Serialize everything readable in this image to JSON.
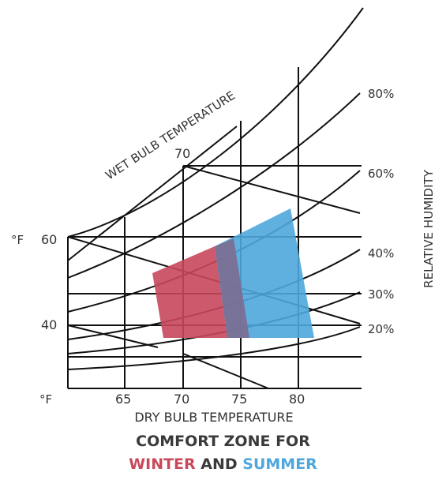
{
  "diagram": {
    "wet_bulb_label": "WET BULB TEMPERATURE",
    "wet_bulb_temp_70": "70",
    "degree_f_left": "°F",
    "left_tick_60": "60",
    "left_tick_40": "40",
    "degree_f_bottom": "°F",
    "x_ticks": [
      "65",
      "70",
      "75",
      "80"
    ],
    "x_axis_label": "DRY BULB TEMPERATURE",
    "rh_axis_label": "RELATIVE HUMIDITY",
    "rh_ticks": [
      "80%",
      "60%",
      "40%",
      "30%",
      "20%"
    ],
    "winter_color": "#c8485c",
    "summer_color": "#4ea7dc",
    "overlap_color": "#7a6f95"
  },
  "caption": {
    "line1": "COMFORT ZONE FOR",
    "winter": "WINTER",
    "and": " AND ",
    "summer": "SUMMER"
  }
}
